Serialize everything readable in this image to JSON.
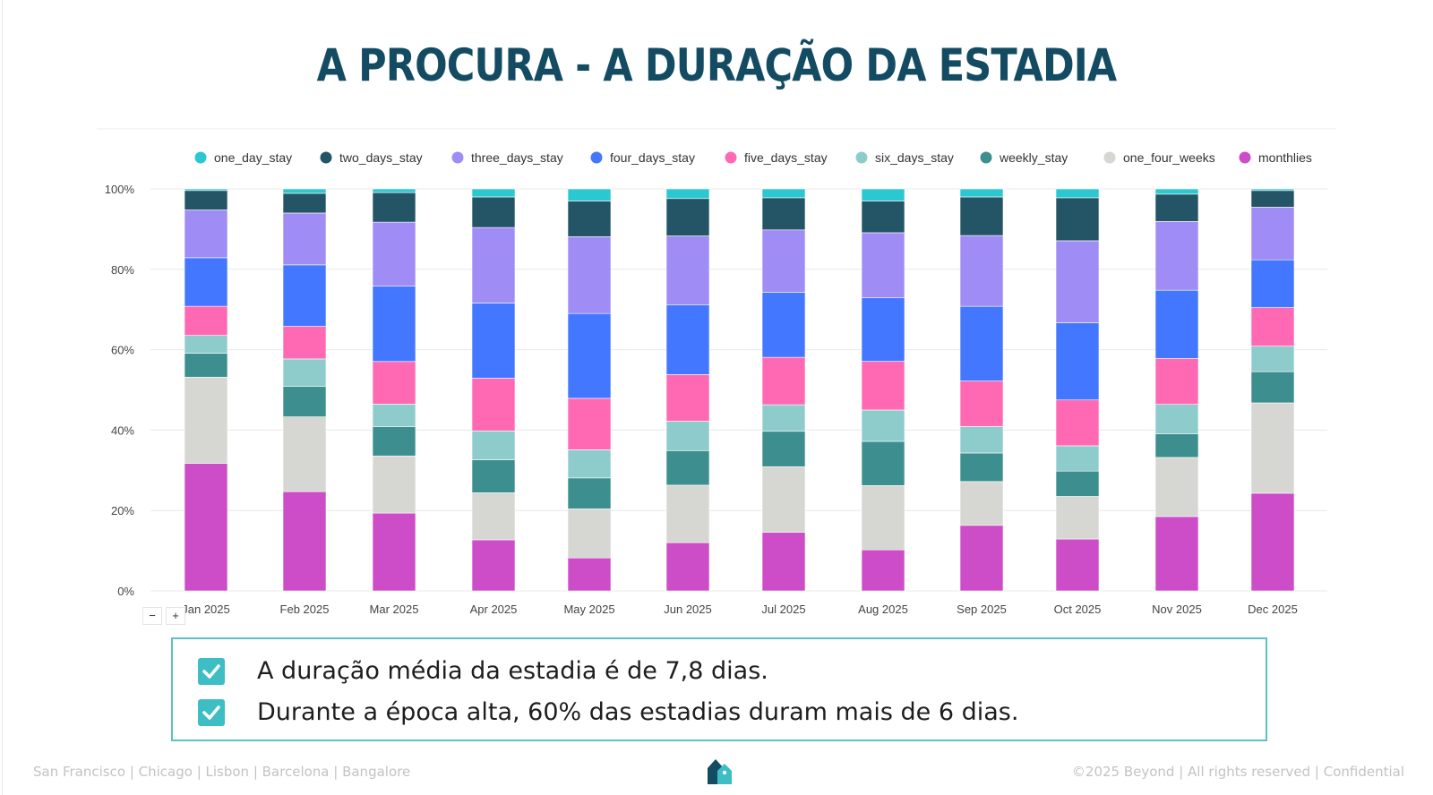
{
  "slide": {
    "title": "A PROCURA - A DURAÇÃO DA ESTADIA",
    "checks": [
      "A duração média da estadia é de 7,8 dias.",
      "Durante a época alta, 60% das estadias duram mais de 6 dias."
    ],
    "footer_left": "San Francisco | Chicago | Lisbon | Barcelona | Bangalore",
    "footer_right": "©2025 Beyond | All rights reserved | Confidential",
    "zoom_out": "−",
    "zoom_in": "+"
  },
  "chart_data": {
    "type": "bar",
    "stacked": true,
    "normalized": true,
    "title": "",
    "xlabel": "",
    "ylabel": "",
    "ylim": [
      0,
      100
    ],
    "yticks": [
      "0%",
      "20%",
      "40%",
      "60%",
      "80%",
      "100%"
    ],
    "legend_position": "top",
    "categories": [
      "Jan 2025",
      "Feb 2025",
      "Mar 2025",
      "Apr 2025",
      "May 2025",
      "Jun 2025",
      "Jul 2025",
      "Aug 2025",
      "Sep 2025",
      "Oct 2025",
      "Nov 2025",
      "Dec 2025"
    ],
    "series": [
      {
        "name": "monthlies",
        "color": "#cc4dc7",
        "values": [
          31.5,
          24.7,
          19.2,
          12.7,
          8.2,
          12.0,
          14.6,
          10.2,
          16.3,
          12.9,
          18.5,
          24.1
        ]
      },
      {
        "name": "one_four_weeks",
        "color": "#d6d6d2",
        "values": [
          21.3,
          18.6,
          14.1,
          11.7,
          12.2,
          14.3,
          16.3,
          16.0,
          10.9,
          10.6,
          14.7,
          22.3
        ]
      },
      {
        "name": "weekly_stay",
        "color": "#3d8f8f",
        "values": [
          5.9,
          7.6,
          7.2,
          8.2,
          7.7,
          8.6,
          8.8,
          11.0,
          7.1,
          6.3,
          5.9,
          7.7
        ]
      },
      {
        "name": "six_days_stay",
        "color": "#8ecccc",
        "values": [
          4.4,
          6.8,
          5.6,
          7.2,
          7.0,
          7.3,
          6.6,
          7.8,
          6.6,
          6.3,
          7.3,
          6.3
        ]
      },
      {
        "name": "five_days_stay",
        "color": "#ff69b4",
        "values": [
          7.2,
          8.1,
          10.5,
          13.1,
          12.8,
          11.6,
          11.8,
          12.1,
          11.3,
          11.4,
          11.4,
          9.5
        ]
      },
      {
        "name": "four_days_stay",
        "color": "#4477ff",
        "values": [
          12.0,
          15.3,
          18.6,
          18.7,
          21.1,
          17.4,
          16.2,
          15.8,
          18.6,
          19.2,
          17.0,
          11.8
        ]
      },
      {
        "name": "three_days_stay",
        "color": "#a08cf5",
        "values": [
          11.8,
          12.9,
          15.8,
          18.8,
          19.1,
          17.1,
          15.5,
          16.2,
          17.6,
          20.4,
          17.1,
          13.0
        ]
      },
      {
        "name": "two_days_stay",
        "color": "#235566",
        "values": [
          4.8,
          4.9,
          7.3,
          7.6,
          8.9,
          9.3,
          8.0,
          7.9,
          9.6,
          10.7,
          6.8,
          4.1
        ]
      },
      {
        "name": "one_day_stay",
        "color": "#2cc8d2",
        "values": [
          0.4,
          1.1,
          0.9,
          2.0,
          3.0,
          2.4,
          2.2,
          3.0,
          2.0,
          2.2,
          1.3,
          0.4
        ]
      }
    ],
    "legend_order": [
      "one_day_stay",
      "two_days_stay",
      "three_days_stay",
      "four_days_stay",
      "five_days_stay",
      "six_days_stay",
      "weekly_stay",
      "one_four_weeks",
      "monthlies"
    ]
  }
}
